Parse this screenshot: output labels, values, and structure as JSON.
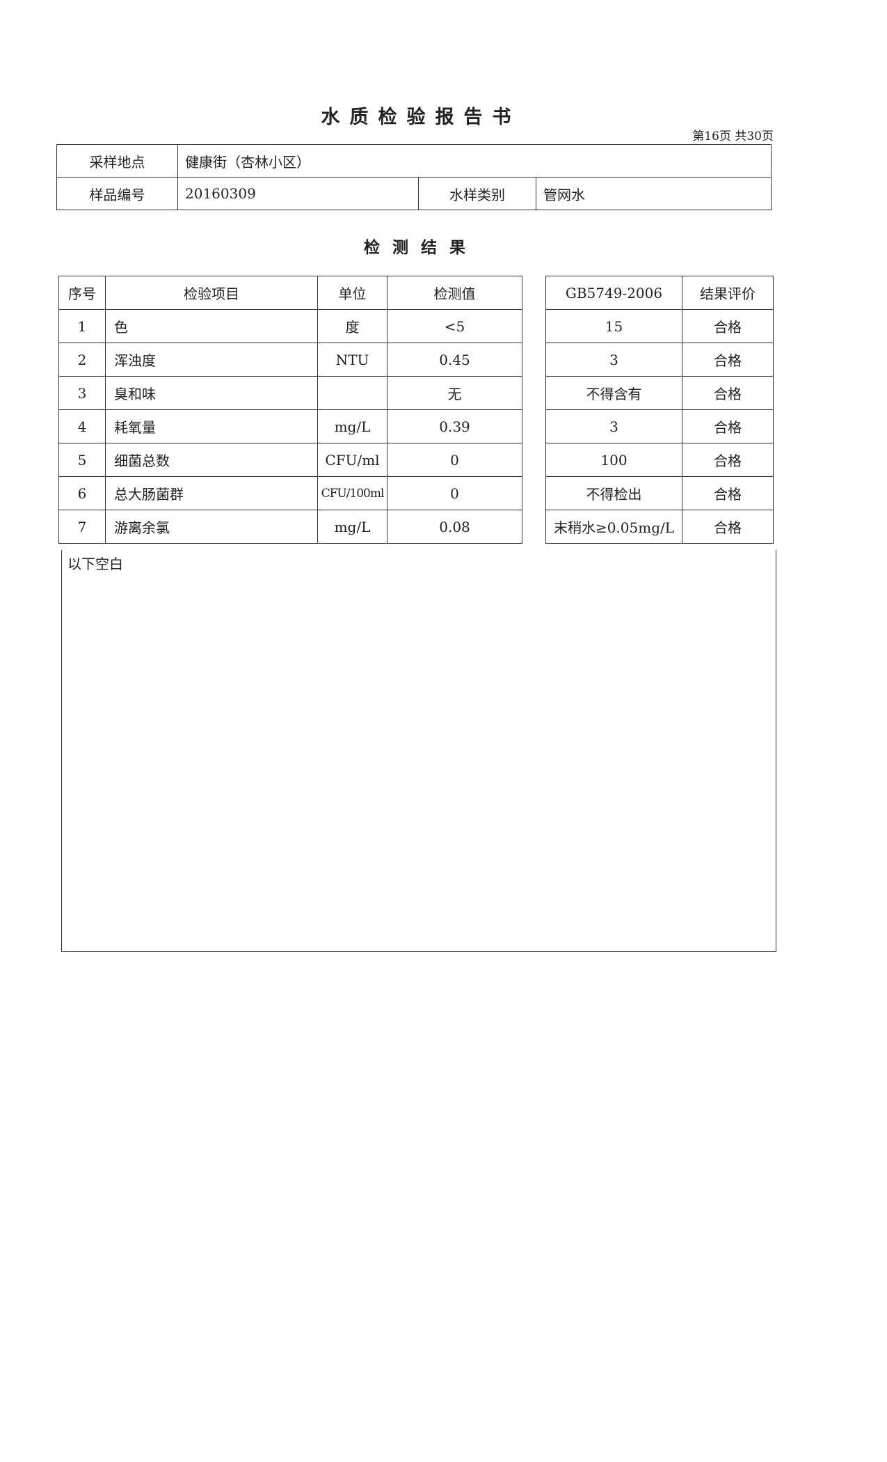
{
  "report": {
    "title": "水质检验报告书",
    "page_info": "第16页  共30页",
    "info": {
      "location_label": "采样地点",
      "location_value": "健康街（杏林小区）",
      "sample_no_label": "样品编号",
      "sample_no_value": "20160309",
      "type_label": "水样类别",
      "type_value": "管网水"
    },
    "section_title": "检测结果",
    "results": {
      "headers": [
        "序号",
        "检验项目",
        "单位",
        "检测值",
        "GB5749-2006",
        "结果评价"
      ],
      "rows": [
        [
          "1",
          "色",
          "度",
          "<5",
          "15",
          "合格"
        ],
        [
          "2",
          "浑浊度",
          "NTU",
          "0.45",
          "3",
          "合格"
        ],
        [
          "3",
          "臭和味",
          "",
          "无",
          "不得含有",
          "合格"
        ],
        [
          "4",
          "耗氧量",
          "mg/L",
          "0.39",
          "3",
          "合格"
        ],
        [
          "5",
          "细菌总数",
          "CFU/ml",
          "0",
          "100",
          "合格"
        ],
        [
          "6",
          "总大肠菌群",
          "CFU/100ml",
          "0",
          "不得检出",
          "合格"
        ],
        [
          "7",
          "游离余氯",
          "mg/L",
          "0.08",
          "末稍水≥0.05mg/L",
          "合格"
        ]
      ]
    },
    "blank_note": "以下空白"
  }
}
